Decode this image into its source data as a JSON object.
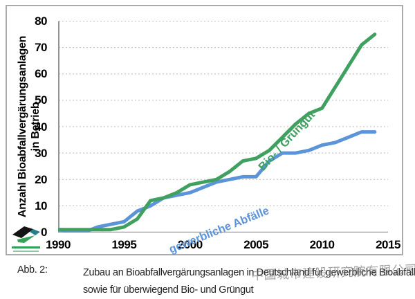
{
  "chart_data": {
    "type": "line",
    "title": "",
    "ylabel_line1": "Anzahl Bioabfallvergärungsanlagen",
    "ylabel_line2": "in Betrieb",
    "xlabel": "",
    "x": [
      1990,
      1991,
      1992,
      1993,
      1994,
      1995,
      1996,
      1997,
      1998,
      1999,
      2000,
      2001,
      2002,
      2003,
      2004,
      2005,
      2006,
      2007,
      2008,
      2009,
      2010,
      2011,
      2012,
      2013,
      2014
    ],
    "series": [
      {
        "name": "gewerbliche Abfälle",
        "color": "#5b94d8",
        "values": [
          1,
          0,
          0,
          2,
          3,
          4,
          8,
          10,
          13,
          14,
          15,
          17,
          19,
          20,
          21,
          21,
          27,
          30,
          30,
          31,
          33,
          34,
          36,
          38,
          38
        ]
      },
      {
        "name": "Bio- / Grüngut",
        "color": "#3fa060",
        "values": [
          1,
          1,
          1,
          1,
          1,
          2,
          5,
          12,
          13,
          15,
          18,
          19,
          20,
          23,
          27,
          28,
          31,
          36,
          41,
          45,
          47,
          55,
          63,
          71,
          75
        ]
      }
    ],
    "xticks": [
      1990,
      1995,
      2000,
      2005,
      2010,
      2015
    ],
    "yticks": [
      0,
      10,
      20,
      30,
      40,
      50,
      60,
      70,
      80
    ],
    "xlim": [
      1990,
      2015
    ],
    "ylim": [
      0,
      80
    ],
    "grid": "horizontal-dotted",
    "legend": "inline-rotated-labels"
  },
  "colors": {
    "grid": "#c6c6c6",
    "spine": "#7a7a7a",
    "axis": "#9e9e9e",
    "frame": "#ababab",
    "logo_black": "#141414",
    "logo_teal": "#267d8d",
    "logo_green": "#33a457"
  },
  "caption": {
    "label": "Abb. 2:",
    "line1": "Zubau an Bioabfallvergärungsanlagen in Deutschland für gewerbliche Bioabfälle",
    "line2": "sowie für überwiegend Bio- und Grüngut"
  },
  "watermark": {
    "text": "中国城市建设研究院有限公司"
  }
}
